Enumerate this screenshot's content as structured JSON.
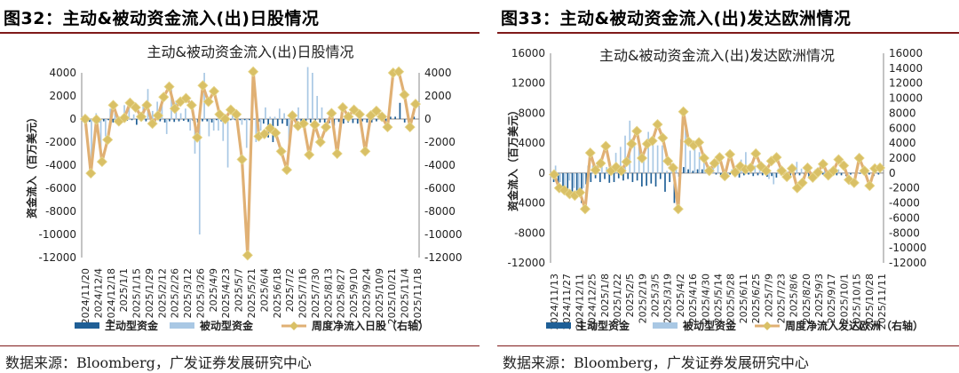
{
  "colors": {
    "active": "#1f5f96",
    "passive": "#a9c8e4",
    "net": "#e0b074",
    "marker": "#d9c066",
    "rule": "#7f1a1a"
  },
  "left": {
    "figure_title": "图32：主动&被动资金流入(出)日股情况",
    "source": "数据来源：Bloomberg，广发证券发展研究中心"
  },
  "right": {
    "figure_title": "图33：主动&被动资金流入(出)发达欧洲情况",
    "source": "数据来源：Bloomberg，广发证券发展研究中心"
  },
  "chart_data": [
    {
      "type": "bar+line",
      "title": "主动&被动资金流入(出)日股情况",
      "ylabel": "资金流入（百万美元）",
      "ylim": [
        -12000,
        4000
      ],
      "y_ticks": [
        4000,
        2000,
        0,
        -2000,
        -4000,
        -6000,
        -8000,
        -10000,
        -12000
      ],
      "y2lim": [
        -12000,
        4000
      ],
      "y2_ticks": [
        4000,
        2000,
        0,
        -2000,
        -4000,
        -6000,
        -8000,
        -10000,
        -12000
      ],
      "x_tick_labels": [
        "2024/11/20",
        "2024/12/4",
        "2024/12/18",
        "2025/1/1",
        "2025/1/15",
        "2025/1/29",
        "2025/2/12",
        "2025/2/26",
        "2025/3/12",
        "2025/3/26",
        "2025/4/9",
        "2025/4/23",
        "2025/5/7",
        "2025/5/21",
        "2025/6/4",
        "2025/6/18",
        "2025/7/2",
        "2025/7/16",
        "2025/7/30",
        "2025/8/13",
        "2025/8/27",
        "2025/9/10",
        "2025/9/24",
        "2025/10/9",
        "2025/10/21",
        "2025/11/4",
        "2025/11/18"
      ],
      "legend": [
        "主动型资金",
        "被动型资金",
        "周度净流入日股（右轴）"
      ],
      "series": [
        {
          "name": "主动型资金",
          "type": "bar",
          "values": [
            -200,
            -250,
            -250,
            -300,
            -200,
            -100,
            -300,
            -400,
            -300,
            -150,
            -100,
            -500,
            -200,
            -200,
            -400,
            -200,
            -200,
            -300,
            -200,
            -250,
            -200,
            -150,
            -250,
            -150,
            -300,
            -200,
            -200,
            -300,
            -100,
            -200,
            -200,
            -100,
            -100,
            -100,
            -100,
            -100,
            -50,
            -250,
            -400,
            -1600,
            -2000,
            -600,
            -400,
            -600,
            -500,
            -200,
            -300,
            -300,
            -300,
            -400,
            -300,
            -300,
            -350,
            -600,
            -250,
            -400,
            -300,
            -350,
            -400,
            -200,
            -300,
            -300,
            -200,
            200,
            -200,
            200,
            200,
            1400,
            -300,
            -600,
            200
          ]
        },
        {
          "name": "被动型资金",
          "type": "bar",
          "values": [
            300,
            -4500,
            500,
            -3500,
            -1500,
            900,
            500,
            200,
            1200,
            1300,
            400,
            800,
            1300,
            2600,
            700,
            1500,
            1300,
            -1300,
            2600,
            1600,
            500,
            900,
            -1000,
            -3000,
            -10000,
            4000,
            -1500,
            -1000,
            -1000,
            -1900,
            -4200,
            300,
            -200,
            -500,
            -2500,
            -500,
            -2000,
            -1000,
            1000,
            200,
            200,
            900,
            500,
            -2800,
            600,
            1000,
            -100,
            4500,
            4000,
            2000,
            1000
          ]
        },
        {
          "name": "周度净流入日股（右轴）",
          "type": "line",
          "values": [
            0,
            -4700,
            -50,
            -3700,
            -1800,
            1200,
            -200,
            100,
            1400,
            1000,
            200,
            1200,
            -400,
            300,
            1900,
            2800,
            900,
            1500,
            1800,
            1200,
            -1600,
            2900,
            1500,
            2400,
            400,
            0,
            800,
            400,
            -3500,
            -11800,
            4100,
            -1500,
            -1300,
            -800,
            -1200,
            -2800,
            -4400,
            300,
            -600,
            -400,
            -3100,
            -500,
            -2000,
            -700,
            500,
            -3000,
            1000,
            200,
            800,
            400,
            -2800,
            300,
            700,
            200,
            -700,
            4000,
            4100,
            2100,
            -700,
            1300
          ]
        }
      ]
    },
    {
      "type": "bar+line",
      "title": "主动&被动资金流入(出)发达欧洲情况",
      "ylabel": "资金流入（百万美元）",
      "ylim": [
        -12000,
        16000
      ],
      "y_ticks": [
        16000,
        12000,
        8000,
        4000,
        0,
        -4000,
        -8000,
        -12000
      ],
      "y2lim": [
        -12000,
        16000
      ],
      "y2_ticks": [
        16000,
        14000,
        12000,
        10000,
        8000,
        6000,
        4000,
        2000,
        0,
        -2000,
        -4000,
        -6000,
        -8000,
        -10000,
        -12000
      ],
      "x_tick_labels": [
        "2024/11/13",
        "2024/11/27",
        "2024/12/11",
        "2024/12/25",
        "2025/1/8",
        "2025/1/22",
        "2025/2/5",
        "2025/2/19",
        "2025/3/5",
        "2025/3/19",
        "2025/4/2",
        "2025/4/16",
        "2025/4/30",
        "2025/5/14",
        "2025/5/28",
        "2025/6/11",
        "2025/6/25",
        "2025/7/9",
        "2025/7/23",
        "2025/8/6",
        "2025/8/20",
        "2025/9/3",
        "2025/9/17",
        "2025/10/1",
        "2025/10/15",
        "2025/10/28",
        "2025/11/11"
      ],
      "legend": [
        "主动型资金",
        "被动型资金",
        "周度净流入发达欧洲（右轴）"
      ],
      "series": [
        {
          "name": "主动型资金",
          "type": "bar",
          "values": [
            -1200,
            -1800,
            -2000,
            -2200,
            -2500,
            -3000,
            -4000,
            -1500,
            -1200,
            -700,
            -1200,
            -800,
            -1300,
            -1200,
            -700,
            -1000,
            -800,
            -1200,
            -1000,
            -1800,
            -1700,
            -1400,
            -1800,
            -800,
            -2500,
            -1200,
            -4000,
            -500,
            800,
            500,
            300,
            500,
            500,
            200,
            100,
            -200,
            -300,
            -400,
            -200,
            -300,
            -600,
            -300,
            -200,
            -400,
            -300,
            -300,
            -500,
            -400,
            -600,
            -300,
            -500,
            -400,
            -300,
            -300,
            -200,
            -700,
            -400,
            -300,
            -200,
            -300,
            -400,
            -300,
            -300,
            -400,
            -200,
            -200,
            -100,
            -200,
            -200,
            -400,
            -200
          ]
        },
        {
          "name": "被动型资金",
          "type": "bar",
          "values": [
            1000,
            -1200,
            -2000,
            -1000,
            -2000,
            -3000,
            -2000,
            1000,
            1000,
            1400,
            2000,
            800,
            300,
            2700,
            3500,
            5000,
            7000,
            4000,
            3500,
            2000,
            5500,
            4500,
            3700,
            3700,
            300,
            800,
            800,
            4500,
            6000,
            3000,
            3200,
            2800,
            1500,
            500,
            1500,
            2200,
            700,
            100,
            500,
            300,
            1800,
            2800,
            1200,
            1000,
            1000,
            500,
            -800,
            -1500,
            600,
            500,
            200,
            500,
            1500,
            600,
            800,
            -200,
            500,
            1400,
            600,
            500,
            300,
            500
          ]
        },
        {
          "name": "周度净流入发达欧洲（右轴）",
          "type": "line",
          "values": [
            -200,
            -2000,
            -2300,
            -2800,
            -3000,
            -2600,
            -4800,
            2700,
            400,
            1300,
            3600,
            300,
            800,
            300,
            1500,
            3900,
            5600,
            2000,
            3900,
            4300,
            6500,
            4700,
            1600,
            700,
            -4800,
            8200,
            4200,
            3700,
            4100,
            2000,
            300,
            1300,
            2100,
            -400,
            2500,
            100,
            900,
            500,
            700,
            2600,
            900,
            300,
            1600,
            2100,
            300,
            -500,
            600,
            -2000,
            -1300,
            700,
            -600,
            100,
            1200,
            -300,
            300,
            1800,
            1000,
            -900,
            -1300,
            2000,
            300,
            -1700,
            600,
            700
          ]
        }
      ]
    }
  ]
}
